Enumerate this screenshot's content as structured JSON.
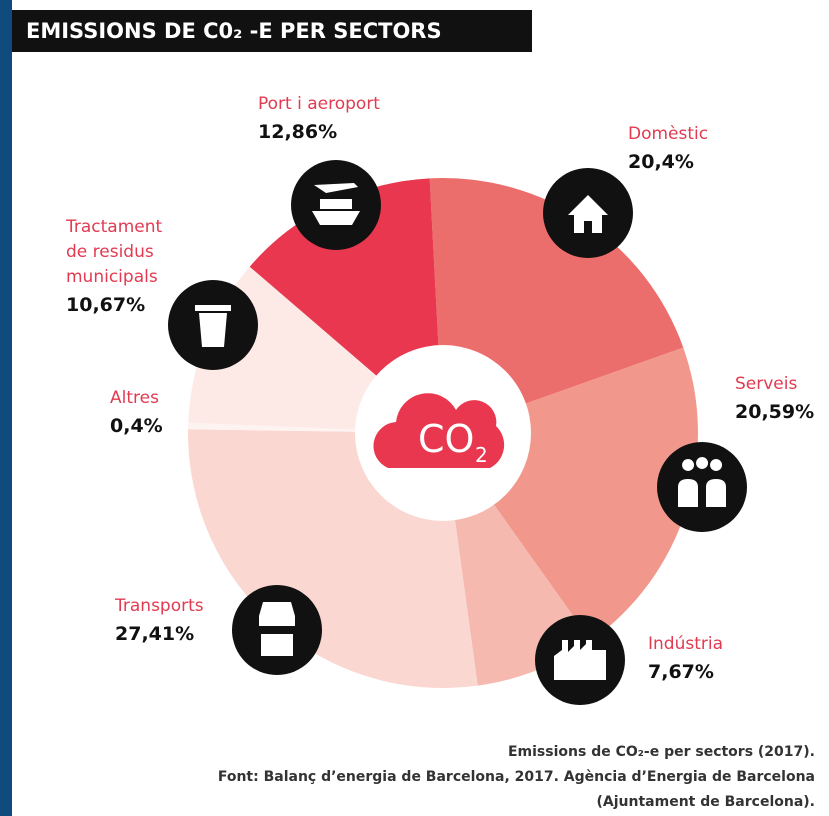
{
  "chart_data": {
    "type": "donut",
    "title": "EMISSIONS DE C0₂ -E PER SECTORS",
    "categories": [
      "Domèstic",
      "Serveis",
      "Indústria",
      "Transports",
      "Altres",
      "Tractament de residus municipals",
      "Port i aeroport"
    ],
    "values": [
      20.4,
      20.59,
      7.67,
      27.41,
      0.4,
      10.67,
      12.86
    ],
    "value_labels": [
      "20,4%",
      "20,59%",
      "7,67%",
      "27,41%",
      "0,4%",
      "10,67%",
      "12,86%"
    ],
    "colors": [
      "#ec6e6c",
      "#f1978c",
      "#f5b9b0",
      "#fad8d1",
      "#fdf3f1",
      "#fdeae7",
      "#e8374e"
    ],
    "center_text": "CO",
    "center_sub": "2",
    "footer": [
      "Emissions de CO₂-e per sectors (2017).",
      "Font: Balanç d’energia de Barcelona, 2017. Agència d’Energia de Barcelona",
      "(Ajuntament de Barcelona)."
    ]
  }
}
